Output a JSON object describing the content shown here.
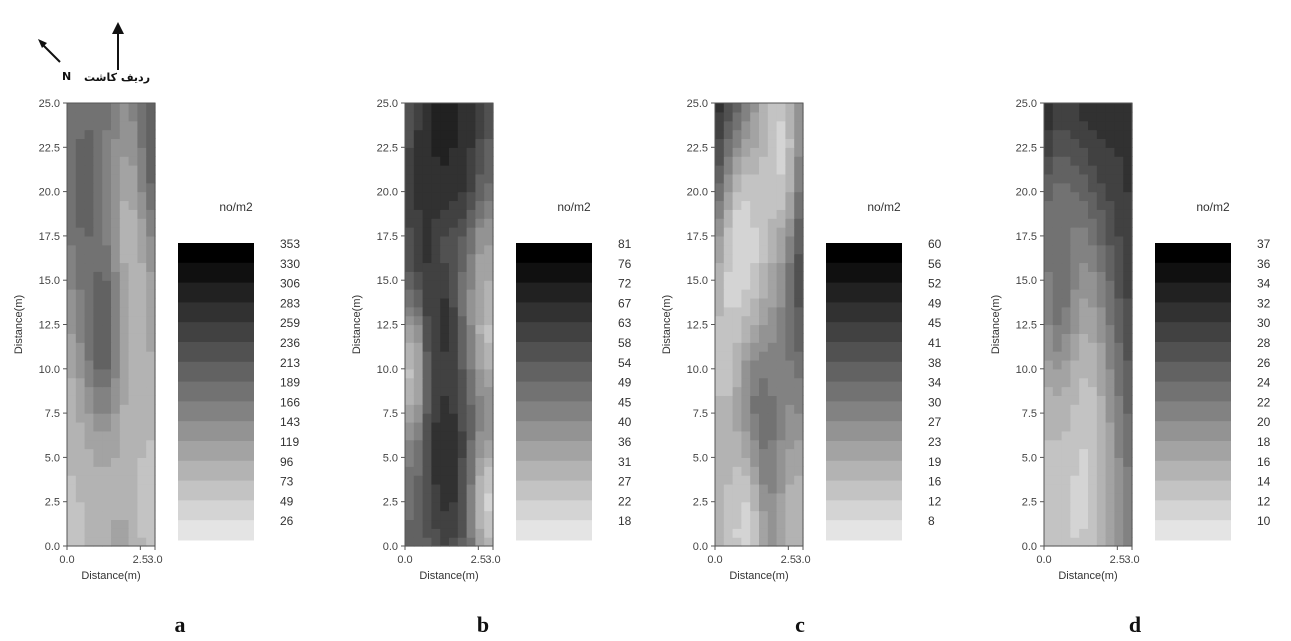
{
  "compass": {
    "north_label": "N",
    "row_label": "ردیف کاشت"
  },
  "chart_data": [
    {
      "type": "heatmap",
      "panel_label": "a",
      "xlabel": "Distance(m)",
      "ylabel": "Distance(m)",
      "xlim": [
        0,
        3.0
      ],
      "ylim": [
        0,
        25.0
      ],
      "x_ticks": [
        "0.0",
        "2.5",
        "3.0"
      ],
      "y_ticks": [
        "0.0",
        "2.5",
        "5.0",
        "7.5",
        "10.0",
        "12.5",
        "15.0",
        "17.5",
        "20.0",
        "22.5",
        "25.0"
      ],
      "unit": "no/m2",
      "legend_levels": [
        "353",
        "330",
        "306",
        "283",
        "259",
        "236",
        "213",
        "189",
        "166",
        "143",
        "119",
        "96",
        "73",
        "49",
        "26"
      ],
      "base_value": 150,
      "features": [
        {
          "x": 1.2,
          "y": 22.5,
          "value": 300,
          "radius": 0.6
        },
        {
          "x": 2.9,
          "y": 22.3,
          "value": 270,
          "radius": 0.5
        },
        {
          "x": 1.5,
          "y": 15.0,
          "value": 30,
          "radius": 0.9
        },
        {
          "x": 0.4,
          "y": 9.0,
          "value": 70,
          "radius": 0.9
        },
        {
          "x": 0.2,
          "y": 2.5,
          "value": 80,
          "radius": 0.7
        },
        {
          "x": 2.9,
          "y": 2.5,
          "value": 70,
          "radius": 0.6
        },
        {
          "x": 1.2,
          "y": 12.5,
          "value": 230,
          "radius": 0.5
        },
        {
          "x": 0.6,
          "y": 20.0,
          "value": 210,
          "radius": 0.7
        }
      ]
    },
    {
      "type": "heatmap",
      "panel_label": "b",
      "xlabel": "Distance(m)",
      "ylabel": "Distance(m)",
      "xlim": [
        0,
        3.0
      ],
      "ylim": [
        0,
        25.0
      ],
      "x_ticks": [
        "0.0",
        "2.5",
        "3.0"
      ],
      "y_ticks": [
        "0.0",
        "2.5",
        "5.0",
        "7.5",
        "10.0",
        "12.5",
        "15.0",
        "17.5",
        "20.0",
        "22.5",
        "25.0"
      ],
      "unit": "no/m2",
      "legend_levels": [
        "81",
        "76",
        "72",
        "67",
        "63",
        "58",
        "54",
        "49",
        "45",
        "40",
        "36",
        "31",
        "27",
        "22",
        "18"
      ],
      "base_value": 52,
      "features": [
        {
          "x": 1.4,
          "y": 20.0,
          "value": 78,
          "radius": 0.7
        },
        {
          "x": 1.5,
          "y": 15.0,
          "value": 20,
          "radius": 0.45
        },
        {
          "x": 0.6,
          "y": 12.5,
          "value": 74,
          "radius": 0.45
        },
        {
          "x": 2.8,
          "y": 12.6,
          "value": 24,
          "radius": 0.35
        },
        {
          "x": 0.3,
          "y": 10.0,
          "value": 24,
          "radius": 0.4
        },
        {
          "x": 1.4,
          "y": 5.0,
          "value": 70,
          "radius": 0.5
        },
        {
          "x": 2.8,
          "y": 2.5,
          "value": 24,
          "radius": 0.35
        },
        {
          "x": 1.4,
          "y": 12.5,
          "value": 66,
          "radius": 0.4
        },
        {
          "x": 2.6,
          "y": 15.5,
          "value": 30,
          "radius": 0.4
        },
        {
          "x": 1.4,
          "y": 24.0,
          "value": 70,
          "radius": 0.8
        }
      ]
    },
    {
      "type": "heatmap",
      "panel_label": "c",
      "xlabel": "Distance(m)",
      "ylabel": "Distance(m)",
      "xlim": [
        0,
        3.0
      ],
      "ylim": [
        0,
        25.0
      ],
      "x_ticks": [
        "0.0",
        "2.5",
        "3.0"
      ],
      "y_ticks": [
        "0.0",
        "2.5",
        "5.0",
        "7.5",
        "10.0",
        "12.5",
        "15.0",
        "17.5",
        "20.0",
        "22.5",
        "25.0"
      ],
      "unit": "no/m2",
      "legend_levels": [
        "60",
        "56",
        "52",
        "49",
        "45",
        "41",
        "38",
        "34",
        "30",
        "27",
        "23",
        "19",
        "16",
        "12",
        "8"
      ],
      "base_value": 30,
      "features": [
        {
          "x": 0.2,
          "y": 21.0,
          "value": 62,
          "radius": 0.9
        },
        {
          "x": 2.8,
          "y": 18.5,
          "value": 55,
          "radius": 0.7
        },
        {
          "x": 1.4,
          "y": 12.5,
          "value": 58,
          "radius": 0.5
        },
        {
          "x": 1.0,
          "y": 15.5,
          "value": 8,
          "radius": 0.7
        },
        {
          "x": 0.9,
          "y": 9.5,
          "value": 8,
          "radius": 0.9
        },
        {
          "x": 2.2,
          "y": 22.5,
          "value": 12,
          "radius": 0.6
        },
        {
          "x": 1.4,
          "y": 5.0,
          "value": 48,
          "radius": 0.6
        },
        {
          "x": 1.0,
          "y": 1.0,
          "value": 12,
          "radius": 0.6
        },
        {
          "x": 2.8,
          "y": 1.0,
          "value": 18,
          "radius": 0.5
        }
      ]
    },
    {
      "type": "heatmap",
      "panel_label": "d",
      "xlabel": "Distance(m)",
      "ylabel": "Distance(m)",
      "xlim": [
        0,
        3.0
      ],
      "ylim": [
        0,
        25.0
      ],
      "x_ticks": [
        "0.0",
        "2.5",
        "3.0"
      ],
      "y_ticks": [
        "0.0",
        "2.5",
        "5.0",
        "7.5",
        "10.0",
        "12.5",
        "15.0",
        "17.5",
        "20.0",
        "22.5",
        "25.0"
      ],
      "unit": "no/m2",
      "legend_levels": [
        "37",
        "36",
        "34",
        "32",
        "30",
        "28",
        "26",
        "24",
        "22",
        "20",
        "18",
        "16",
        "14",
        "12",
        "10"
      ],
      "base_value": 22,
      "features": [
        {
          "x": 0.0,
          "y": 22.0,
          "value": 38,
          "radius": 0.6
        },
        {
          "x": 1.5,
          "y": 22.0,
          "value": 35,
          "radius": 1.4
        },
        {
          "x": 2.8,
          "y": 15.0,
          "value": 33,
          "radius": 0.9
        },
        {
          "x": 1.0,
          "y": 5.0,
          "value": 11,
          "radius": 1.2
        },
        {
          "x": 0.4,
          "y": 9.0,
          "value": 14,
          "radius": 0.8
        },
        {
          "x": 0.5,
          "y": 15.0,
          "value": 24,
          "radius": 0.5
        }
      ]
    }
  ]
}
